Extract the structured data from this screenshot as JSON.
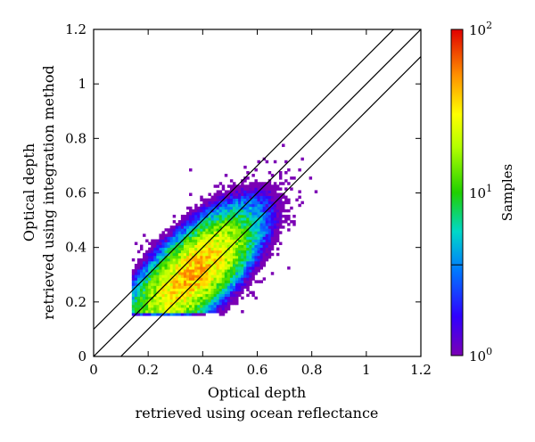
{
  "chart_data": {
    "type": "heatmap",
    "title": "",
    "xlabel_line1": "Optical depth",
    "xlabel_line2": "retrieved using ocean reflectance",
    "ylabel_line1": "Optical depth",
    "ylabel_line2": "retrieved using integration method",
    "xlim": [
      0,
      1.2
    ],
    "ylim": [
      0,
      1.2
    ],
    "x_ticks": [
      "0",
      "0.2",
      "0.4",
      "0.6",
      "0.8",
      "1",
      "1.2"
    ],
    "y_ticks": [
      "0",
      "0.2",
      "0.4",
      "0.6",
      "0.8",
      "1",
      "1.2"
    ],
    "reference_lines": [
      {
        "slope": 1,
        "intercept": 0.1
      },
      {
        "slope": 1,
        "intercept": 0
      },
      {
        "slope": 1,
        "intercept": -0.1
      }
    ],
    "colorbar": {
      "label": "Samples",
      "scale": "log",
      "range": [
        1,
        100
      ],
      "ticks": [
        {
          "value": 1,
          "base": "10",
          "exp": "0"
        },
        {
          "value": 10,
          "base": "10",
          "exp": "1"
        },
        {
          "value": 100,
          "base": "10",
          "exp": "2"
        }
      ],
      "marker_value": 3.6
    },
    "density_model": {
      "description": "2D histogram of sample counts, densest near x~0.35, y~0.3, elongated along y≈x-0.05",
      "bin_width": 0.01,
      "peak_count": 45,
      "peak_x": 0.36,
      "peak_y": 0.3
    }
  }
}
